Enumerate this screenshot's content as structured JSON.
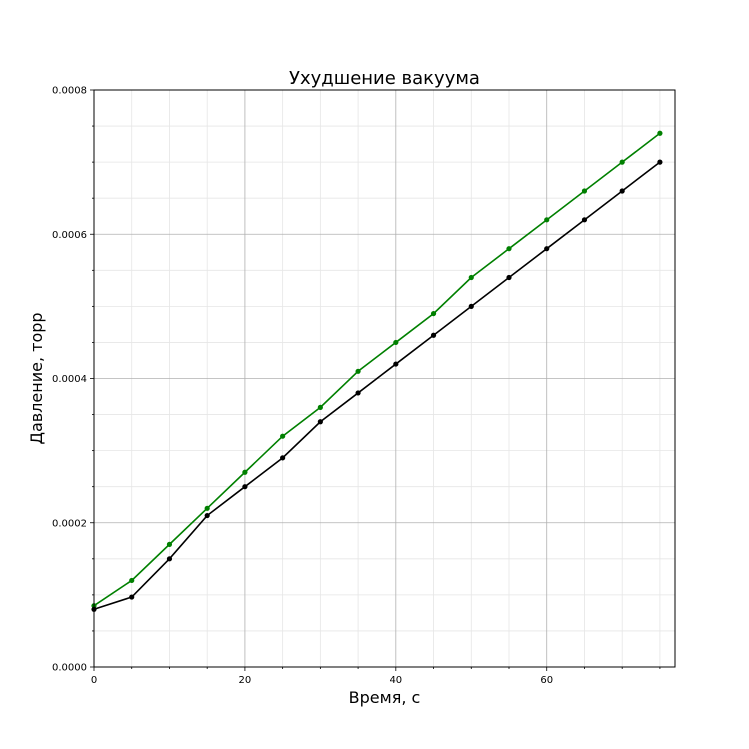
{
  "chart_data": {
    "type": "line",
    "title": "Ухудшение вакуума",
    "xlabel": "Время, с",
    "ylabel": "Давление, торр",
    "xlim": [
      0,
      77
    ],
    "ylim": [
      0,
      0.0008
    ],
    "x_ticks": [
      0,
      20,
      40,
      60
    ],
    "x_tick_labels": [
      "0",
      "20",
      "40",
      "60"
    ],
    "y_ticks": [
      0,
      0.0002,
      0.0004,
      0.0006,
      0.0008
    ],
    "y_tick_labels": [
      "0.0000",
      "0.0002",
      "0.0004",
      "0.0006",
      "0.0008"
    ],
    "x_minor_ticks": [
      5,
      10,
      15,
      25,
      30,
      35,
      45,
      50,
      55,
      65,
      70,
      75
    ],
    "y_minor_ticks": [
      5e-05,
      0.0001,
      0.00015,
      0.00025,
      0.0003,
      0.00035,
      0.00045,
      0.0005,
      0.00055,
      0.00065,
      0.0007,
      0.00075
    ],
    "grid": true,
    "x": [
      0,
      5,
      10,
      15,
      20,
      25,
      30,
      35,
      40,
      45,
      50,
      55,
      60,
      65,
      70,
      75
    ],
    "series": [
      {
        "color": "#008000",
        "values": [
          8.5e-05,
          0.00012,
          0.00017,
          0.00022,
          0.00027,
          0.00032,
          0.00036,
          0.00041,
          0.00045,
          0.00049,
          0.00054,
          0.00058,
          0.00062,
          0.00066,
          0.0007,
          0.00074
        ]
      },
      {
        "color": "#000000",
        "values": [
          8e-05,
          9.7e-05,
          0.00015,
          0.00021,
          0.00025,
          0.00029,
          0.00034,
          0.00038,
          0.00042,
          0.00046,
          0.0005,
          0.00054,
          0.00058,
          0.00062,
          0.00066,
          0.0007
        ]
      }
    ]
  }
}
